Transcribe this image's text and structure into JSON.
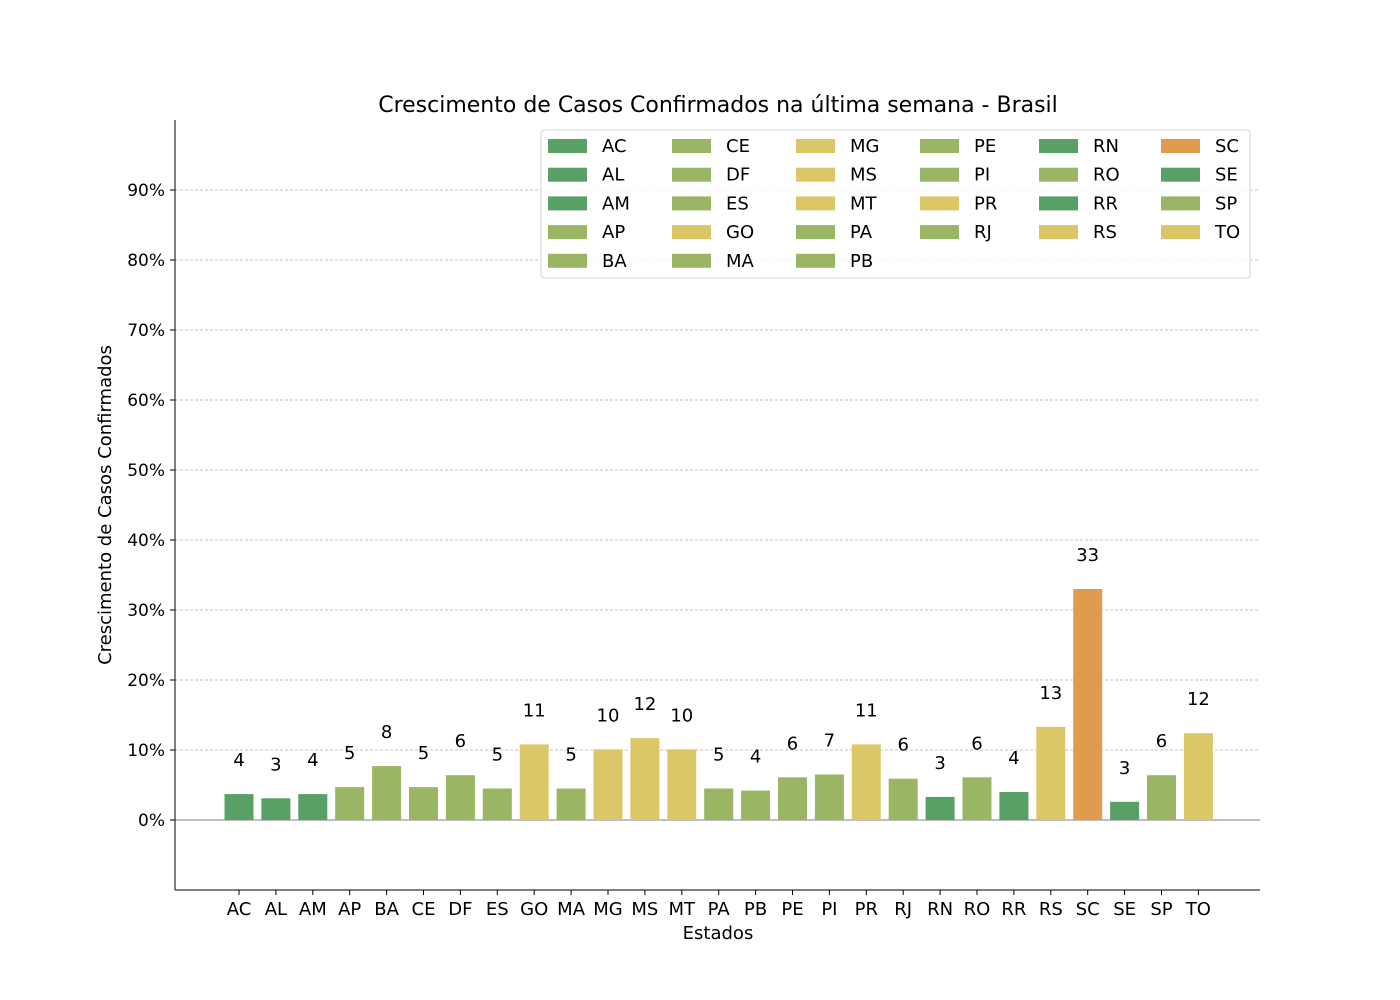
{
  "chart_data": {
    "type": "bar",
    "title": "Crescimento de Casos Confirmados na última semana - Brasil",
    "xlabel": "Estados",
    "ylabel": "Crescimento de Casos Confirmados",
    "ylim": [
      -10,
      100
    ],
    "yticks": [
      0,
      10,
      20,
      30,
      40,
      50,
      60,
      70,
      80,
      90
    ],
    "ytick_labels": [
      "0%",
      "10%",
      "20%",
      "30%",
      "40%",
      "50%",
      "60%",
      "70%",
      "80%",
      "90%"
    ],
    "grid": "horizontal",
    "legend_position": "top-right",
    "categories": [
      "AC",
      "AL",
      "AM",
      "AP",
      "BA",
      "CE",
      "DF",
      "ES",
      "GO",
      "MA",
      "MG",
      "MS",
      "MT",
      "PA",
      "PB",
      "PE",
      "PI",
      "PR",
      "RJ",
      "RN",
      "RO",
      "RR",
      "RS",
      "SC",
      "SE",
      "SP",
      "TO"
    ],
    "values": [
      3.7,
      3.1,
      3.7,
      4.7,
      7.7,
      4.7,
      6.4,
      4.5,
      10.8,
      4.5,
      10.1,
      11.7,
      10.1,
      4.5,
      4.2,
      6.1,
      6.5,
      10.8,
      5.9,
      3.3,
      6.1,
      4.0,
      13.3,
      33.0,
      2.6,
      6.4,
      12.4
    ],
    "value_labels": [
      "4",
      "3",
      "4",
      "5",
      "8",
      "5",
      "6",
      "5",
      "11",
      "5",
      "10",
      "12",
      "10",
      "5",
      "4",
      "6",
      "7",
      "11",
      "6",
      "3",
      "6",
      "4",
      "13",
      "33",
      "3",
      "6",
      "12"
    ],
    "colors": [
      "#58a066",
      "#58a066",
      "#58a066",
      "#9ab564",
      "#9ab564",
      "#9ab564",
      "#9ab564",
      "#9ab564",
      "#dbc768",
      "#9ab564",
      "#dbc768",
      "#dbc768",
      "#dbc768",
      "#9ab564",
      "#9ab564",
      "#9ab564",
      "#9ab564",
      "#dbc768",
      "#9ab564",
      "#58a066",
      "#9ab564",
      "#58a066",
      "#dbc768",
      "#e09c4c",
      "#58a066",
      "#9ab564",
      "#dbc768"
    ],
    "legend_columns": [
      [
        "AC",
        "AL",
        "AM",
        "AP",
        "BA"
      ],
      [
        "CE",
        "DF",
        "ES",
        "GO",
        "MA"
      ],
      [
        "MG",
        "MS",
        "MT",
        "PA",
        "PB"
      ],
      [
        "PE",
        "PI",
        "PR",
        "RJ"
      ],
      [
        "RN",
        "RO",
        "RR",
        "RS"
      ],
      [
        "SC",
        "SE",
        "SP",
        "TO"
      ]
    ]
  }
}
